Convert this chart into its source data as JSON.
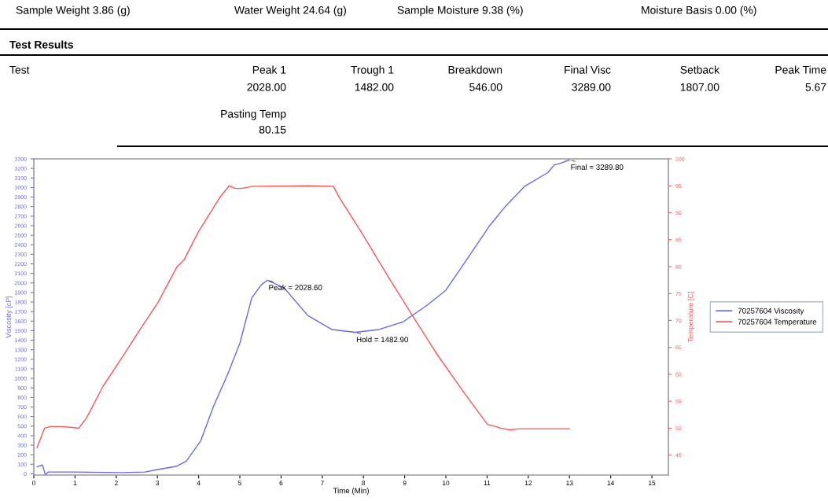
{
  "chart_data": {
    "type": "line",
    "xlabel": "Time (Min)",
    "ylabel": "Viscosity [cP]",
    "y2label": "Temperature [C]",
    "xlim": [
      0,
      15.4
    ],
    "xticks": [
      0,
      1,
      2,
      3,
      4,
      5,
      6,
      7,
      8,
      9,
      10,
      11,
      12,
      13,
      14,
      15
    ],
    "ylim": [
      -13,
      3300
    ],
    "yticks": [
      0,
      100,
      200,
      300,
      400,
      500,
      600,
      700,
      800,
      900,
      1000,
      1100,
      1200,
      1300,
      1400,
      1500,
      1600,
      1700,
      1800,
      1900,
      2000,
      2100,
      2200,
      2300,
      2400,
      2500,
      2600,
      2700,
      2800,
      2900,
      3000,
      3100,
      3200,
      3300
    ],
    "y2lim": [
      41.3,
      100
    ],
    "y2ticks": [
      45,
      50,
      55,
      60,
      65,
      70,
      75,
      80,
      85,
      90,
      95,
      100
    ],
    "grid": false,
    "legend": "right",
    "marker": "none",
    "line_style": "solid",
    "series": [
      {
        "name": "70257604 Viscosity",
        "color": "#6666ff",
        "x": [
          0.08,
          0.21,
          0.28,
          0.35,
          0.98,
          2.14,
          2.7,
          3.01,
          3.47,
          3.7,
          4.05,
          4.36,
          4.71,
          5.0,
          5.29,
          5.52,
          5.67,
          6.07,
          6.65,
          7.23,
          7.8,
          8.38,
          8.96,
          9.54,
          10.0,
          10.46,
          11.04,
          11.44,
          11.91,
          12.48,
          12.63,
          12.77,
          13.0
        ],
        "values": [
          75,
          93,
          -10,
          19,
          19,
          13,
          19,
          45,
          80,
          133,
          345,
          706,
          1048,
          1367,
          1844,
          1980,
          2028.6,
          1950,
          1659,
          1512,
          1482.9,
          1512,
          1592,
          1765,
          1924,
          2216,
          2587,
          2800,
          3012,
          3158,
          3237,
          3251,
          3289.8
        ]
      },
      {
        "name": "70257604 Temperature",
        "color": "#ff5555",
        "axis": "y2",
        "x": [
          0.08,
          0.26,
          0.4,
          0.69,
          0.98,
          1.09,
          1.28,
          1.68,
          2.14,
          2.6,
          3.01,
          3.47,
          3.65,
          3.99,
          4.51,
          4.74,
          4.89,
          5.03,
          5.32,
          6.68,
          7.27,
          7.4,
          7.98,
          8.61,
          9.19,
          9.77,
          10.46,
          11.01,
          11.21,
          11.33,
          11.56,
          11.79,
          13.0
        ],
        "values": [
          46.4,
          50.0,
          50.3,
          50.3,
          50.1,
          50.0,
          51.9,
          57.8,
          63.1,
          68.6,
          73.3,
          79.9,
          81.3,
          86.4,
          92.8,
          95.0,
          94.5,
          94.5,
          94.9,
          95.0,
          94.9,
          93.0,
          86.0,
          78.0,
          70.9,
          63.9,
          56.4,
          50.7,
          50.3,
          50.0,
          49.7,
          49.9,
          49.9
        ]
      }
    ],
    "annotations": [
      {
        "text": "Peak = 2028.60",
        "x": 5.67,
        "y": 2028.6
      },
      {
        "text": "Hold = 1482.90",
        "x": 7.8,
        "y": 1482.9
      },
      {
        "text": "Final = 3289.80",
        "x": 13.0,
        "y": 3289.8
      },
      "Sample Weight 3.86 (g)",
      "Water Weight 24.64 (g)",
      "Sample Moisture 9.38 (%)",
      "Moisture Basis 0.00 (%)",
      "Test Results",
      "Test",
      "Peak 1",
      "Trough 1",
      "Breakdown",
      "Final Visc",
      "Setback",
      "Peak Time",
      "2028.00",
      "1482.00",
      "546.00",
      "3289.00",
      "1807.00",
      "5.67",
      "Pasting Temp",
      "80.15"
    ]
  }
}
